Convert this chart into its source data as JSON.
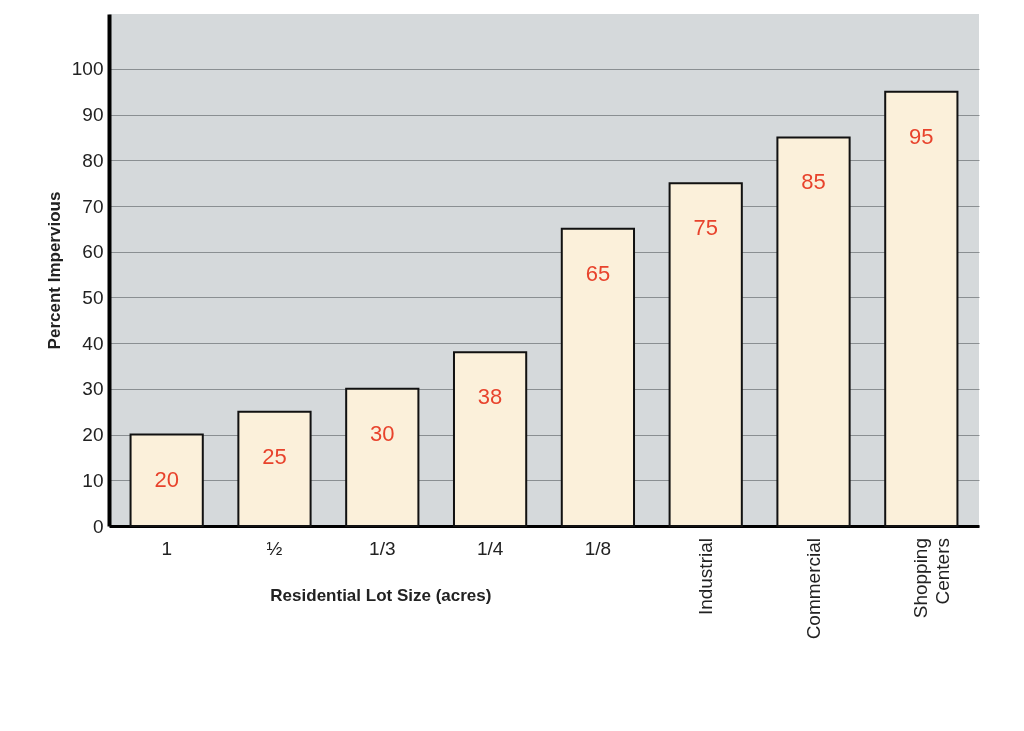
{
  "chart_data": {
    "type": "bar",
    "categories": [
      "1",
      "½",
      "1/3",
      "1/4",
      "1/8",
      "Industrial",
      "Commercial",
      "Shopping Centers"
    ],
    "values": [
      20,
      25,
      30,
      38,
      65,
      75,
      85,
      95
    ],
    "color": "#fbf0da",
    "xlabel": "Residential Lot Size (acres)",
    "ylabel": "Percent Impervious",
    "ylim": [
      0,
      112
    ],
    "yticks": [
      0,
      10,
      20,
      30,
      40,
      50,
      60,
      70,
      80,
      90,
      100
    ],
    "grid": "y",
    "data_labels": true
  }
}
